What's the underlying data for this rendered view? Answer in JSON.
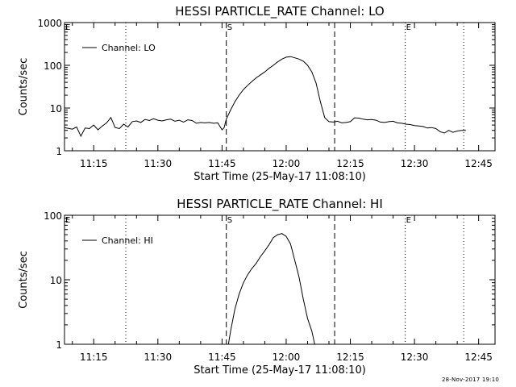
{
  "footer": {
    "timestamp": "28-Nov-2017 19:10"
  },
  "chart_data": [
    {
      "type": "line",
      "title": "HESSI PARTICLE_RATE Channel: LO",
      "xlabel": "Start Time (25-May-17 11:08:10)",
      "ylabel": "Counts/sec",
      "yscale": "log",
      "ylim": [
        1,
        1000
      ],
      "xlim": [
        "11:08:10",
        "12:48:50"
      ],
      "x_ticks": [
        "11:15",
        "11:30",
        "11:45",
        "12:00",
        "12:15",
        "12:30",
        "12:45"
      ],
      "y_ticks": [
        "1",
        "10",
        "100",
        "1000"
      ],
      "legend": {
        "position": "top-left",
        "entries": [
          "Channel: LO"
        ]
      },
      "markers": [
        {
          "label": "E",
          "time": "11:08:10",
          "style": "dotted"
        },
        {
          "label": "",
          "time": "11:22:30",
          "style": "dotted"
        },
        {
          "label": "S",
          "time": "11:46:00",
          "style": "dashed"
        },
        {
          "label": "",
          "time": "12:11:20",
          "style": "dashed"
        },
        {
          "label": "E",
          "time": "12:27:50",
          "style": "dotted"
        },
        {
          "label": "",
          "time": "12:41:30",
          "style": "dotted"
        }
      ],
      "series": [
        {
          "name": "Channel: LO",
          "x": [
            "11:08:10",
            "11:10",
            "11:11",
            "11:12",
            "11:13",
            "11:14",
            "11:15",
            "11:16",
            "11:17",
            "11:18",
            "11:19",
            "11:20",
            "11:21",
            "11:22",
            "11:23",
            "11:24",
            "11:25",
            "11:26",
            "11:27",
            "11:28",
            "11:29",
            "11:30",
            "11:31",
            "11:32",
            "11:33",
            "11:34",
            "11:35",
            "11:36",
            "11:37",
            "11:38",
            "11:39",
            "11:40",
            "11:41",
            "11:42",
            "11:43",
            "11:44",
            "11:45",
            "11:45:30",
            "11:46",
            "11:47",
            "11:48",
            "11:49",
            "11:50",
            "11:51",
            "11:52",
            "11:53",
            "11:54",
            "11:55",
            "11:56",
            "11:57",
            "11:58",
            "11:59",
            "12:00",
            "12:01",
            "12:02",
            "12:03",
            "12:04",
            "12:05",
            "12:06",
            "12:07",
            "12:08",
            "12:09",
            "12:10",
            "12:11",
            "12:12",
            "12:13",
            "12:14",
            "12:15",
            "12:16",
            "12:17",
            "12:18",
            "12:19",
            "12:20",
            "12:21",
            "12:22",
            "12:23",
            "12:24",
            "12:25",
            "12:26",
            "12:27",
            "12:28",
            "12:29",
            "12:30",
            "12:31",
            "12:32",
            "12:33",
            "12:34",
            "12:35",
            "12:36",
            "12:37",
            "12:38",
            "12:39",
            "12:40",
            "12:41",
            "12:42"
          ],
          "y": [
            3.5,
            3.2,
            3.6,
            2.2,
            3.4,
            3.3,
            4.0,
            3.1,
            3.8,
            4.5,
            6.0,
            3.5,
            3.3,
            4.2,
            3.6,
            4.8,
            5.0,
            4.6,
            5.4,
            5.1,
            5.6,
            5.2,
            5.0,
            5.3,
            5.5,
            4.9,
            5.2,
            4.7,
            5.3,
            5.1,
            4.4,
            4.6,
            4.5,
            4.6,
            4.4,
            4.5,
            3.1,
            3.5,
            5.5,
            9,
            14,
            20,
            27,
            34,
            42,
            51,
            60,
            70,
            85,
            100,
            120,
            140,
            155,
            160,
            150,
            140,
            125,
            100,
            70,
            38,
            14,
            6,
            4.8,
            4.7,
            4.9,
            4.5,
            4.6,
            4.8,
            5.9,
            5.8,
            5.5,
            5.3,
            5.4,
            5.2,
            4.7,
            4.6,
            4.8,
            4.9,
            4.5,
            4.4,
            4.2,
            4.1,
            3.9,
            3.8,
            3.7,
            3.4,
            3.5,
            3.3,
            2.8,
            2.6,
            3.0,
            2.7,
            2.9,
            3.0,
            3.0
          ]
        }
      ]
    },
    {
      "type": "line",
      "title": "HESSI PARTICLE_RATE Channel: HI",
      "xlabel": "Start Time (25-May-17 11:08:10)",
      "ylabel": "Counts/sec",
      "yscale": "log",
      "ylim": [
        1,
        100
      ],
      "xlim": [
        "11:08:10",
        "12:48:50"
      ],
      "x_ticks": [
        "11:15",
        "11:30",
        "11:45",
        "12:00",
        "12:15",
        "12:30",
        "12:45"
      ],
      "y_ticks": [
        "1",
        "10",
        "100"
      ],
      "legend": {
        "position": "top-left",
        "entries": [
          "Channel: HI"
        ]
      },
      "markers": [
        {
          "label": "E",
          "time": "11:08:10",
          "style": "dotted"
        },
        {
          "label": "",
          "time": "11:22:30",
          "style": "dotted"
        },
        {
          "label": "S",
          "time": "11:46:00",
          "style": "dashed"
        },
        {
          "label": "",
          "time": "12:11:20",
          "style": "dashed"
        },
        {
          "label": "E",
          "time": "12:27:50",
          "style": "dotted"
        },
        {
          "label": "",
          "time": "12:41:30",
          "style": "dotted"
        }
      ],
      "series": [
        {
          "name": "Channel: HI",
          "x": [
            "11:46:30",
            "11:47",
            "11:48",
            "11:49",
            "11:50",
            "11:51",
            "11:52",
            "11:53",
            "11:54",
            "11:55",
            "11:56",
            "11:57",
            "11:58",
            "11:59",
            "12:00",
            "12:01",
            "12:02",
            "12:03",
            "12:04",
            "12:05",
            "12:06",
            "12:06:40"
          ],
          "y": [
            1,
            1.6,
            3.5,
            6,
            9,
            12,
            15,
            18,
            23,
            28,
            35,
            45,
            50,
            52,
            47,
            36,
            20,
            11,
            5,
            2.5,
            1.6,
            1
          ]
        }
      ]
    }
  ]
}
